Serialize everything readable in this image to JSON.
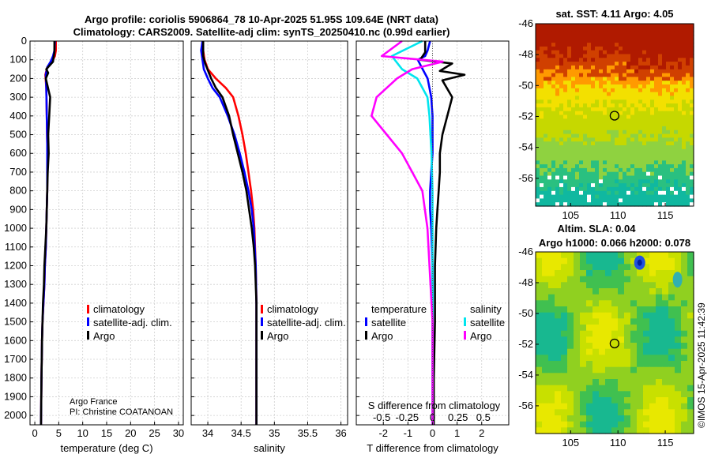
{
  "header": {
    "title_line1": "Argo profile: coriolis 5906864_78 10-Apr-2025 51.95S 109.64E (NRT data)",
    "title_line2": "Climatology: CARS2009. Satellite-adj clim: synTS_20250410.nc (0.99d earlier)"
  },
  "credits": {
    "org": "Argo France",
    "pi": "PI: Christine COATANOAN",
    "imos": "©IMOS 15-Apr-2025 11:42:39"
  },
  "colors": {
    "climatology": "#ff0000",
    "satellite": "#0000ff",
    "argo": "#000000",
    "sat_salinity": "#00e5ee",
    "argo_salinity": "#ff00ff"
  },
  "depth_axis": {
    "min": 0,
    "max": 2050,
    "ticks": [
      0,
      100,
      200,
      300,
      400,
      500,
      600,
      700,
      800,
      900,
      1000,
      1100,
      1200,
      1300,
      1400,
      1500,
      1600,
      1700,
      1800,
      1900,
      2000
    ]
  },
  "legends": {
    "temperature": [
      "climatology",
      "satellite-adj. clim.",
      "Argo"
    ],
    "salinity": [
      "climatology",
      "satellite-adj. clim.",
      "Argo"
    ],
    "diff_temp_title": "temperature",
    "diff_sal_title": "salinity",
    "diff_temp_items": [
      "satellite",
      "Argo"
    ],
    "diff_sal_items": [
      "satellite",
      "Argo"
    ]
  },
  "chart_data": [
    {
      "type": "line",
      "name": "temperature-profile",
      "xlabel": "temperature (deg C)",
      "xlim": [
        -1,
        31
      ],
      "xticks": [
        0,
        5,
        10,
        15,
        20,
        25,
        30
      ],
      "ylim": [
        2050,
        0
      ],
      "series": [
        {
          "name": "climatology",
          "x": [
            4.4,
            4.4,
            4.2,
            3.6,
            2.6,
            2.2,
            2.4,
            2.5,
            2.6,
            2.6,
            2.6,
            2.5,
            2.4,
            2.3,
            2.1,
            2.0,
            1.8,
            1.6,
            1.5,
            1.4,
            1.3
          ],
          "y": [
            0,
            50,
            80,
            110,
            140,
            180,
            250,
            400,
            550,
            700,
            800,
            900,
            1000,
            1100,
            1200,
            1300,
            1400,
            1500,
            1600,
            1800,
            2050
          ]
        },
        {
          "name": "satellite-adj. clim.",
          "x": [
            4.2,
            4.1,
            3.8,
            3.3,
            2.6,
            2.3,
            2.4,
            2.5,
            2.6,
            2.6,
            2.6,
            2.5,
            2.4,
            2.3,
            2.1,
            2.0,
            1.8,
            1.6,
            1.5,
            1.4,
            1.3
          ],
          "y": [
            0,
            50,
            80,
            110,
            140,
            180,
            250,
            400,
            550,
            700,
            800,
            900,
            1000,
            1100,
            1200,
            1300,
            1400,
            1500,
            1600,
            1800,
            2050
          ]
        },
        {
          "name": "Argo",
          "x": [
            4.1,
            4.1,
            3.9,
            3.8,
            2.4,
            2.8,
            2.3,
            3.2,
            3.0,
            2.8,
            2.9,
            2.7,
            2.6,
            2.5,
            2.4,
            2.2,
            2.0,
            1.9,
            1.7,
            1.6,
            1.5,
            1.4,
            1.3
          ],
          "y": [
            0,
            60,
            90,
            110,
            150,
            170,
            200,
            300,
            400,
            500,
            600,
            700,
            800,
            900,
            1000,
            1100,
            1200,
            1300,
            1400,
            1500,
            1600,
            1800,
            2050
          ]
        }
      ]
    },
    {
      "type": "line",
      "name": "salinity-profile",
      "xlabel": "salinity",
      "xlim": [
        33.75,
        36.1
      ],
      "xticks": [
        34,
        34.5,
        35,
        35.5,
        36
      ],
      "ylim": [
        2050,
        0
      ],
      "series": [
        {
          "name": "climatology",
          "x": [
            33.93,
            33.93,
            33.95,
            34.0,
            34.12,
            34.27,
            34.38,
            34.46,
            34.52,
            34.57,
            34.61,
            34.65,
            34.68,
            34.7,
            34.72,
            34.73,
            34.73,
            34.73,
            34.73
          ],
          "y": [
            0,
            50,
            100,
            150,
            200,
            250,
            300,
            400,
            500,
            600,
            700,
            800,
            900,
            1000,
            1200,
            1400,
            1600,
            1800,
            2050
          ]
        },
        {
          "name": "satellite-adj. clim.",
          "x": [
            33.92,
            33.9,
            33.92,
            33.94,
            34.0,
            34.07,
            34.18,
            34.3,
            34.4,
            34.48,
            34.55,
            34.61,
            34.66,
            34.69,
            34.72,
            34.73,
            34.73,
            34.73,
            34.73
          ],
          "y": [
            0,
            50,
            100,
            150,
            200,
            250,
            300,
            400,
            500,
            600,
            700,
            800,
            900,
            1000,
            1200,
            1400,
            1600,
            1800,
            2050
          ]
        },
        {
          "name": "Argo",
          "x": [
            33.93,
            33.93,
            33.96,
            34.05,
            34.12,
            34.22,
            34.32,
            34.38,
            34.45,
            34.52,
            34.58,
            34.62,
            34.66,
            34.69,
            34.71,
            34.73,
            34.73,
            34.73
          ],
          "y": [
            0,
            80,
            120,
            200,
            250,
            300,
            400,
            500,
            600,
            700,
            800,
            900,
            1000,
            1100,
            1200,
            1400,
            1700,
            2050
          ]
        }
      ]
    },
    {
      "type": "line",
      "name": "difference-profile",
      "xlabel": "T difference from climatology",
      "x2label": "S difference from climatology",
      "xlim": [
        -3.1,
        3.1
      ],
      "xticks": [
        -2,
        -1,
        0,
        1,
        2
      ],
      "x2ticks": [
        -0.5,
        -0.25,
        0,
        0.25,
        0.5
      ],
      "x2tick_labels": [
        "-0.5",
        "-0.25",
        "0",
        "0.25",
        "0.5"
      ],
      "ylim": [
        2050,
        0
      ],
      "series": [
        {
          "name": "temperature satellite",
          "x": [
            -0.1,
            -0.2,
            -0.3,
            -0.6,
            -0.4,
            -0.2,
            -0.05,
            0.0,
            0.0,
            0.0,
            -0.05,
            -0.1,
            -0.1,
            -0.05,
            0.0,
            0.0,
            0.0,
            0.0
          ],
          "y": [
            0,
            50,
            80,
            100,
            150,
            200,
            300,
            400,
            500,
            600,
            700,
            800,
            900,
            1000,
            1200,
            1400,
            1700,
            2050
          ]
        },
        {
          "name": "temperature Argo",
          "x": [
            -0.3,
            -0.3,
            -0.5,
            0.8,
            0.3,
            1.3,
            0.4,
            0.8,
            0.6,
            0.4,
            0.3,
            0.3,
            0.25,
            0.2,
            0.15,
            0.1,
            0.1,
            0.05,
            0.05
          ],
          "y": [
            0,
            60,
            100,
            120,
            160,
            180,
            210,
            300,
            400,
            500,
            600,
            700,
            800,
            900,
            1000,
            1200,
            1500,
            1800,
            2050
          ]
        },
        {
          "name": "salinity satellite",
          "x": [
            -0.1,
            -0.4,
            -0.3,
            -0.15,
            -0.05,
            -0.03,
            -0.02,
            -0.01,
            0.0,
            0.0,
            0.0,
            0.0
          ],
          "y": [
            0,
            80,
            150,
            200,
            300,
            400,
            500,
            600,
            800,
            1000,
            1500,
            2050
          ]
        },
        {
          "name": "salinity Argo",
          "x": [
            -0.3,
            -0.5,
            0.1,
            -0.2,
            -0.35,
            -0.55,
            -0.6,
            -0.45,
            -0.3,
            -0.2,
            -0.1,
            -0.05,
            0.0,
            0.0
          ],
          "y": [
            0,
            80,
            110,
            150,
            200,
            300,
            400,
            500,
            600,
            700,
            800,
            1000,
            1500,
            2050
          ]
        }
      ]
    },
    {
      "type": "heatmap",
      "name": "sst-map",
      "title": "sat. SST: 4.11 Argo: 4.05",
      "xticks": [
        105,
        110,
        115
      ],
      "yticks": [
        -46,
        -48,
        -50,
        -52,
        -54,
        -56
      ],
      "xlim": [
        101.3,
        118
      ],
      "ylim": [
        -57.8,
        -46
      ],
      "argo_position": [
        109.64,
        -51.95
      ]
    },
    {
      "type": "heatmap",
      "name": "sla-map",
      "title_line1": "Altim. SLA: 0.04",
      "title_line2": "Argo h1000: 0.066 h2000: 0.078",
      "xticks": [
        105,
        110,
        115
      ],
      "yticks": [
        -46,
        -48,
        -50,
        -52,
        -54,
        -56
      ],
      "xlim": [
        101.3,
        118
      ],
      "ylim": [
        -57.8,
        -46
      ],
      "argo_position": [
        109.64,
        -51.95
      ]
    }
  ]
}
